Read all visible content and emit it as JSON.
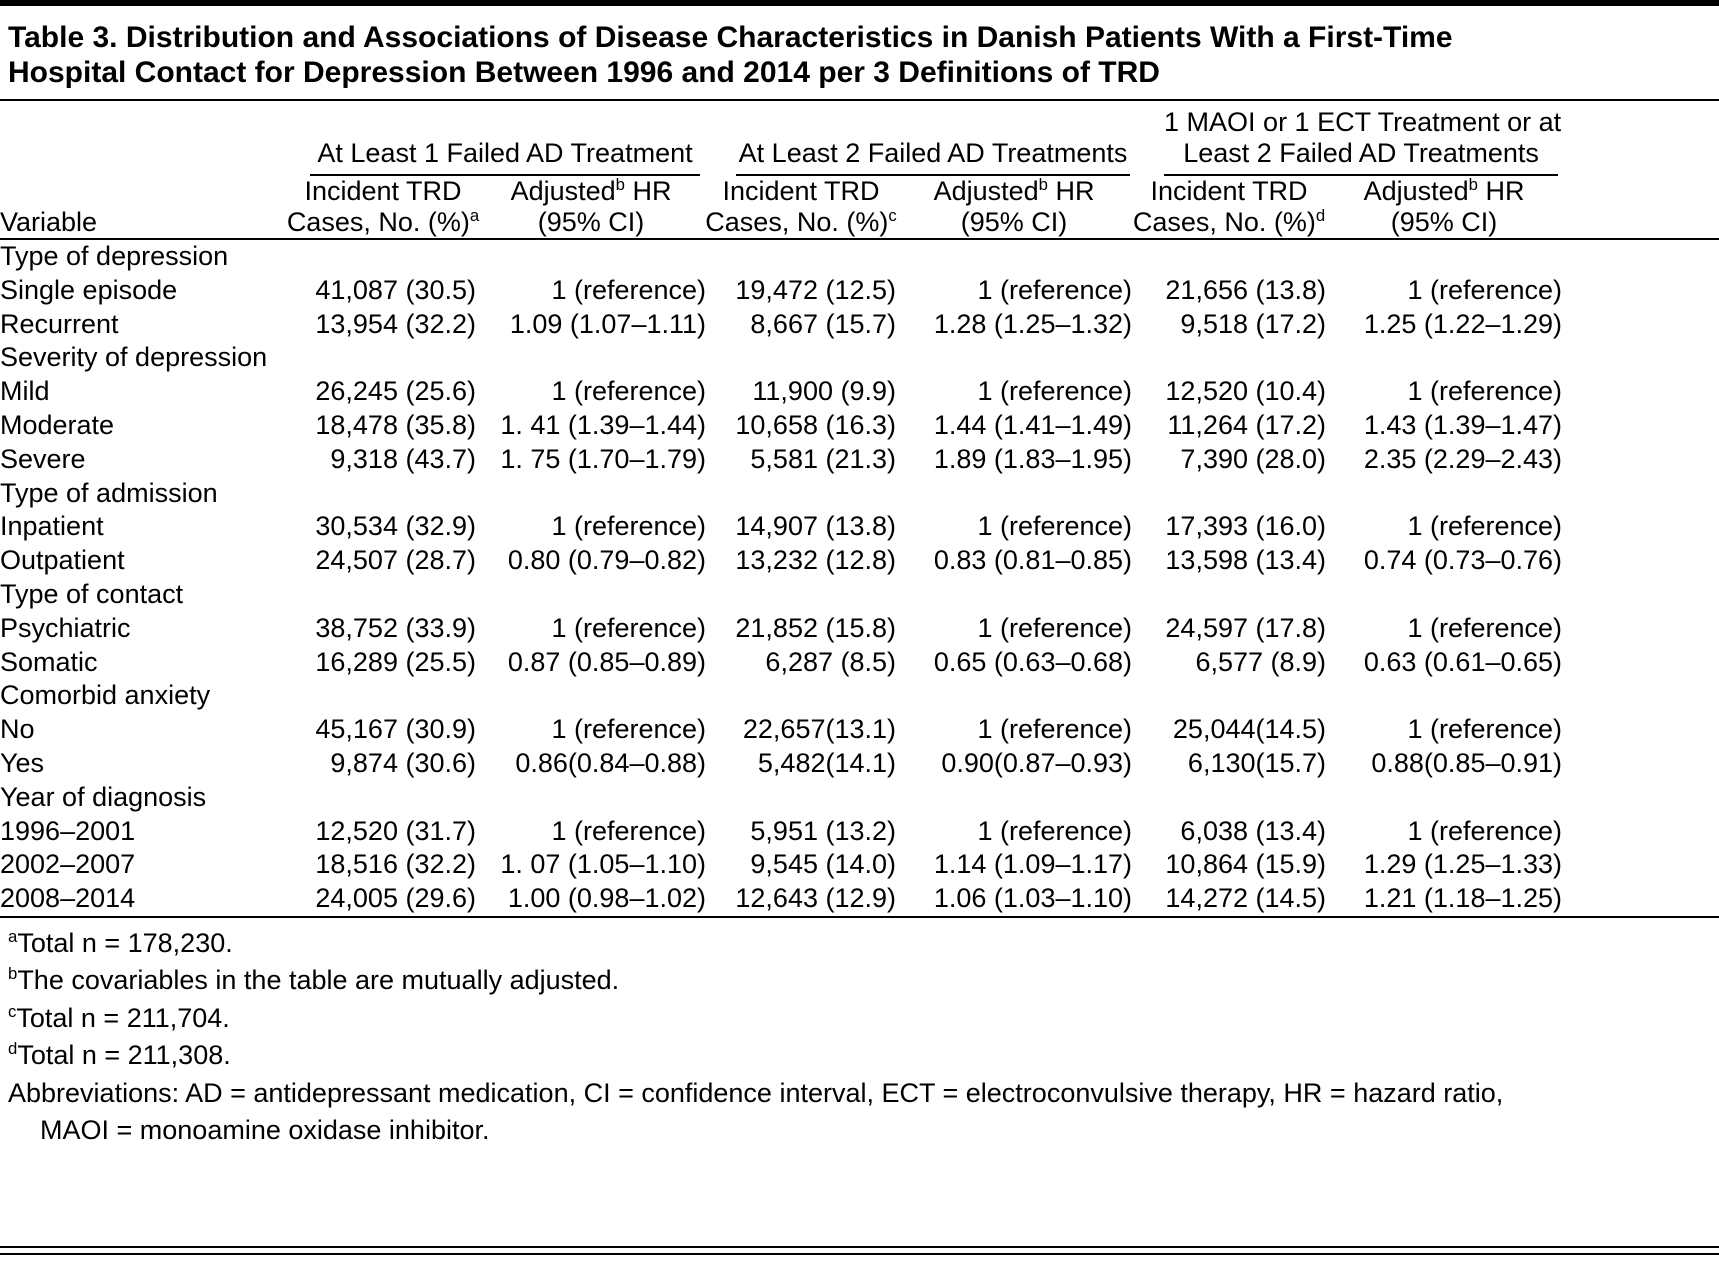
{
  "colors": {
    "background": "#ffffff",
    "text": "#000000",
    "rule": "#000000"
  },
  "title": {
    "line1": "Table 3. Distribution and Associations of Disease Characteristics in Danish Patients With a First-Time",
    "line2": "Hospital Contact for Depression Between 1996 and 2014 per 3 Definitions of TRD"
  },
  "columns": {
    "variable": "Variable",
    "groups": [
      {
        "label_lines": [
          "At Least 1 Failed AD Treatment"
        ],
        "cases": {
          "line1": "Incident TRD",
          "line2": "Cases, No. (%)",
          "sup": "a"
        },
        "hr": {
          "pre": "Adjusted",
          "sup": "b",
          "post": " HR",
          "line2": "(95% CI)"
        }
      },
      {
        "label_lines": [
          "At Least 2 Failed AD Treatments"
        ],
        "cases": {
          "line1": "Incident TRD",
          "line2": "Cases, No. (%)",
          "sup": "c"
        },
        "hr": {
          "pre": "Adjusted",
          "sup": "b",
          "post": " HR",
          "line2": "(95% CI)"
        }
      },
      {
        "label_lines": [
          "1 MAOI or 1 ECT Treatment or at",
          "Least 2 Failed AD Treatments"
        ],
        "cases": {
          "line1": "Incident TRD",
          "line2": "Cases, No. (%)",
          "sup": "d"
        },
        "hr": {
          "pre": "Adjusted",
          "sup": "b",
          "post": " HR",
          "line2": "(95% CI)"
        }
      }
    ]
  },
  "sections": [
    {
      "label": "Type of depression",
      "rows": [
        {
          "label": "Single episode",
          "cells": [
            "41,087 (30.5)",
            "1 (reference)",
            "19,472 (12.5)",
            "1 (reference)",
            "21,656 (13.8)",
            "1 (reference)"
          ]
        },
        {
          "label": "Recurrent",
          "cells": [
            "13,954 (32.2)",
            "1.09 (1.07–1.11)",
            "8,667 (15.7)",
            "1.28 (1.25–1.32)",
            "9,518 (17.2)",
            "1.25 (1.22–1.29)"
          ]
        }
      ]
    },
    {
      "label": "Severity of depression",
      "rows": [
        {
          "label": "Mild",
          "cells": [
            "26,245 (25.6)",
            "1 (reference)",
            "11,900 (9.9)",
            "1 (reference)",
            "12,520 (10.4)",
            "1 (reference)"
          ]
        },
        {
          "label": "Moderate",
          "cells": [
            "18,478 (35.8)",
            "1. 41 (1.39–1.44)",
            "10,658 (16.3)",
            "1.44 (1.41–1.49)",
            "11,264 (17.2)",
            "1.43 (1.39–1.47)"
          ]
        },
        {
          "label": "Severe",
          "cells": [
            "9,318 (43.7)",
            "1. 75 (1.70–1.79)",
            "5,581 (21.3)",
            "1.89 (1.83–1.95)",
            "7,390 (28.0)",
            "2.35 (2.29–2.43)"
          ]
        }
      ]
    },
    {
      "label": "Type of admission",
      "rows": [
        {
          "label": "Inpatient",
          "cells": [
            "30,534 (32.9)",
            "1 (reference)",
            "14,907 (13.8)",
            "1 (reference)",
            "17,393 (16.0)",
            "1 (reference)"
          ]
        },
        {
          "label": "Outpatient",
          "cells": [
            "24,507 (28.7)",
            "0.80 (0.79–0.82)",
            "13,232 (12.8)",
            "0.83 (0.81–0.85)",
            "13,598 (13.4)",
            "0.74 (0.73–0.76)"
          ]
        }
      ]
    },
    {
      "label": "Type of contact",
      "rows": [
        {
          "label": "Psychiatric",
          "cells": [
            "38,752 (33.9)",
            "1 (reference)",
            "21,852 (15.8)",
            "1 (reference)",
            "24,597 (17.8)",
            "1 (reference)"
          ]
        },
        {
          "label": "Somatic",
          "cells": [
            "16,289 (25.5)",
            "0.87 (0.85–0.89)",
            "6,287 (8.5)",
            "0.65 (0.63–0.68)",
            "6,577 (8.9)",
            "0.63 (0.61–0.65)"
          ]
        }
      ]
    },
    {
      "label": "Comorbid anxiety",
      "rows": [
        {
          "label": "No",
          "cells": [
            "45,167 (30.9)",
            "1 (reference)",
            "22,657(13.1)",
            "1 (reference)",
            "25,044(14.5)",
            "1 (reference)"
          ]
        },
        {
          "label": "Yes",
          "cells": [
            "9,874 (30.6)",
            "0.86(0.84–0.88)",
            "5,482(14.1)",
            "0.90(0.87–0.93)",
            "6,130(15.7)",
            "0.88(0.85–0.91)"
          ]
        }
      ]
    },
    {
      "label": "Year of diagnosis",
      "rows": [
        {
          "label": "1996–2001",
          "cells": [
            "12,520 (31.7)",
            "1 (reference)",
            "5,951 (13.2)",
            "1 (reference)",
            "6,038 (13.4)",
            "1 (reference)"
          ]
        },
        {
          "label": "2002–2007",
          "cells": [
            "18,516 (32.2)",
            "1. 07 (1.05–1.10)",
            "9,545 (14.0)",
            "1.14 (1.09–1.17)",
            "10,864 (15.9)",
            "1.29 (1.25–1.33)"
          ]
        },
        {
          "label": "2008–2014",
          "cells": [
            "24,005 (29.6)",
            "1.00 (0.98–1.02)",
            "12,643 (12.9)",
            "1.06 (1.03–1.10)",
            "14,272 (14.5)",
            "1.21 (1.18–1.25)"
          ]
        }
      ]
    }
  ],
  "footnotes": [
    {
      "sup": "a",
      "text": "Total n = 178,230.",
      "indent": false
    },
    {
      "sup": "b",
      "text": "The covariables in the table are mutually adjusted.",
      "indent": false
    },
    {
      "sup": "c",
      "text": "Total n = 211,704.",
      "indent": false
    },
    {
      "sup": "d",
      "text": "Total n = 211,308.",
      "indent": false
    },
    {
      "sup": "",
      "text": "Abbreviations: AD = antidepressant medication, CI = confidence interval,  ECT = electroconvulsive therapy, HR = hazard ratio,",
      "indent": false
    },
    {
      "sup": "",
      "text": "MAOI = monoamine oxidase inhibitor.",
      "indent": true
    }
  ]
}
